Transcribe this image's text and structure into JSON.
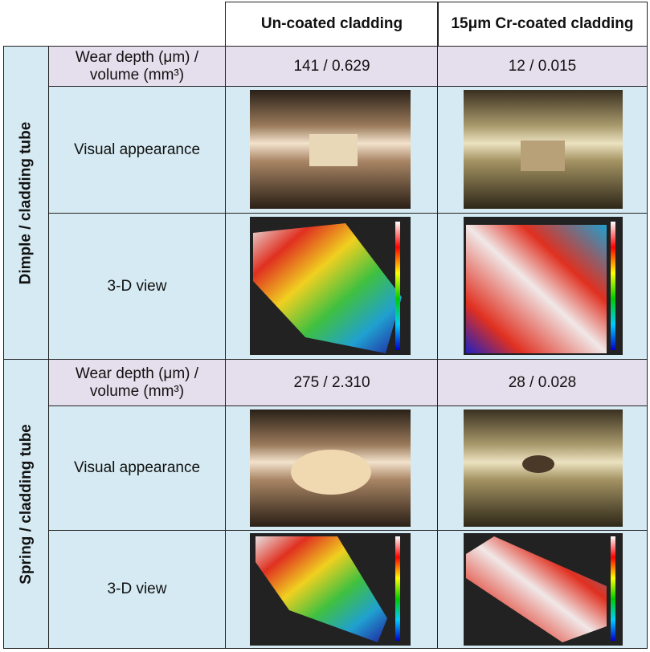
{
  "table": {
    "columns": [
      "Un-coated cladding",
      "15μm Cr-coated cladding"
    ],
    "groups": [
      {
        "name": "Dimple / cladding tube",
        "rows": [
          {
            "label": "Wear depth (μm) / volume (mm³)",
            "values": [
              "141 / 0.629",
              "12 / 0.015"
            ]
          },
          {
            "label": "Visual appearance"
          },
          {
            "label": "3-D view"
          }
        ]
      },
      {
        "name": "Spring / cladding tube",
        "rows": [
          {
            "label": "Wear depth (μm) / volume (mm³)",
            "values": [
              "275 / 2.310",
              "28 / 0.028"
            ]
          },
          {
            "label": "Visual appearance"
          },
          {
            "label": "3-D view"
          }
        ]
      }
    ]
  }
}
